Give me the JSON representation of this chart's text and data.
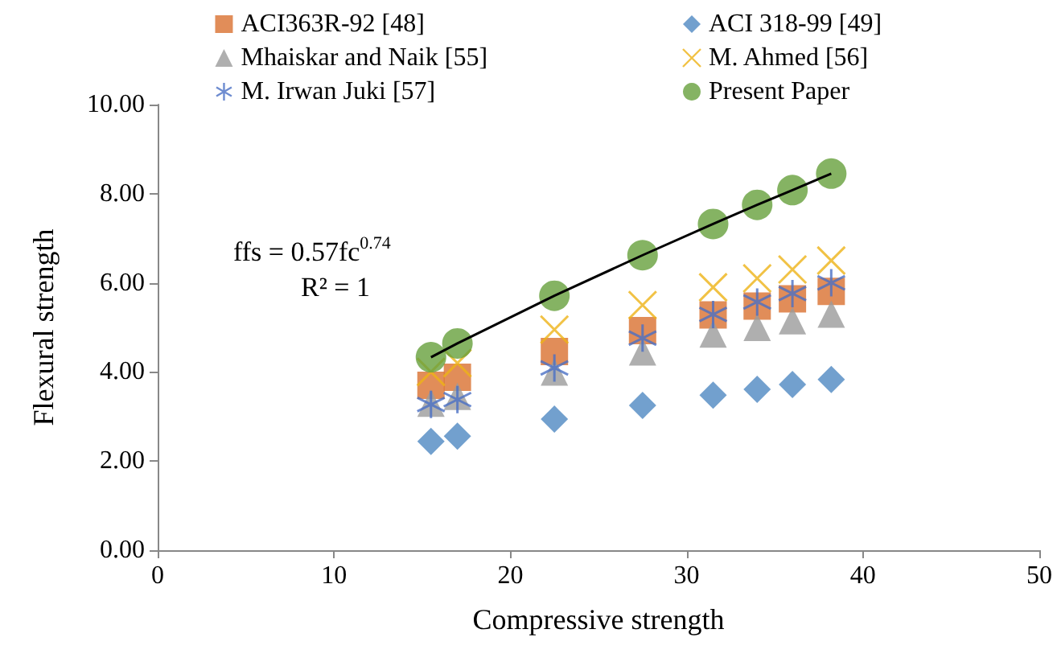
{
  "chart_data": {
    "type": "scatter",
    "xlabel": "Compressive strength",
    "ylabel": "Flexural strength",
    "annotations": [
      "ffs = 0.57fc$^{0.74}$",
      "R² = 1"
    ],
    "x": [
      15.5,
      17,
      22.5,
      27.5,
      31.5,
      34,
      36,
      38.2
    ],
    "series": [
      {
        "name": "ACI363R-92 [48]",
        "color": "#d9712f",
        "marker": "square",
        "values": [
          3.7,
          3.88,
          4.46,
          4.93,
          5.28,
          5.48,
          5.64,
          5.81
        ]
      },
      {
        "name": "ACI 318-99 [49]",
        "color": "#4f88c2",
        "marker": "diamond",
        "values": [
          2.44,
          2.56,
          2.94,
          3.25,
          3.48,
          3.61,
          3.72,
          3.83
        ]
      },
      {
        "name": "Mhaiskar and Naik [55]",
        "color": "#9b9b9b",
        "marker": "triangle",
        "values": [
          3.3,
          3.45,
          4.0,
          4.45,
          4.85,
          5.0,
          5.15,
          5.3
        ]
      },
      {
        "name": "M. Ahmed [56]",
        "color": "#eeb317",
        "marker": "cross",
        "values": [
          4.0,
          4.2,
          4.95,
          5.5,
          5.9,
          6.1,
          6.3,
          6.5
        ]
      },
      {
        "name": "M. Irwan Juki [57]",
        "color": "#4a6fc4",
        "marker": "cross",
        "values": [
          3.27,
          3.38,
          4.09,
          4.76,
          5.29,
          5.57,
          5.76,
          6.0
        ]
      },
      {
        "name": "Present Paper",
        "color": "#66a03c",
        "marker": "circle",
        "values": [
          4.33,
          4.64,
          5.71,
          6.62,
          7.32,
          7.75,
          8.08,
          8.45
        ]
      },
      {
        "type": "line",
        "color": "#000000",
        "marker": "none",
        "x": [
          15.5,
          17,
          22.5,
          27.5,
          31.5,
          34,
          36,
          38.2
        ],
        "values": [
          4.33,
          4.64,
          5.71,
          6.62,
          7.32,
          7.75,
          8.08,
          8.45
        ]
      }
    ],
    "xlim": [
      0,
      50
    ],
    "xticks": [
      0,
      10,
      20,
      30,
      40,
      50
    ],
    "ylim": [
      0,
      10
    ],
    "yticks": [
      {
        "value": 0,
        "label": "0.00"
      },
      {
        "value": 2,
        "label": "2.00"
      },
      {
        "value": 4,
        "label": "4.00"
      },
      {
        "value": 6,
        "label": "6.00"
      },
      {
        "value": 8,
        "label": "8.00"
      },
      {
        "value": 10,
        "label": "10.00"
      }
    ],
    "grid": false,
    "legend": "top"
  }
}
